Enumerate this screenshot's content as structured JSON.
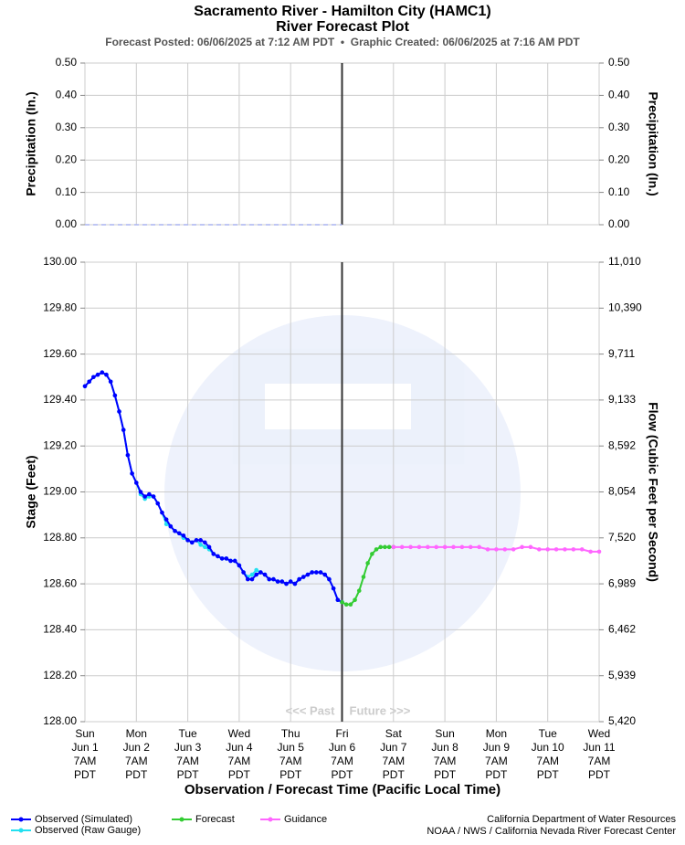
{
  "header": {
    "title": "Sacramento River - Hamilton City (HAMC1)",
    "subtitle": "River Forecast Plot",
    "posted": "Forecast Posted: 06/06/2025 at 7:12 AM PDT  •  Graphic Created: 06/06/2025 at 7:16 AM PDT"
  },
  "chart_data": [
    {
      "type": "line",
      "ylabel": "Precipitation (In.)",
      "y2label": "Precipitation (In.)",
      "ylim": [
        0,
        0.5
      ],
      "yticks": [
        {
          "value": 0,
          "label": "0.00"
        },
        {
          "value": 0.1,
          "label": "0.10"
        },
        {
          "value": 0.2,
          "label": "0.20"
        },
        {
          "value": 0.3,
          "label": "0.30"
        },
        {
          "value": 0.4,
          "label": "0.40"
        },
        {
          "value": 0.5,
          "label": "0.50"
        }
      ],
      "y2lim": [
        0,
        0.5
      ],
      "y2ticks": [
        {
          "value": 0,
          "label": "0.00"
        },
        {
          "value": 0.1,
          "label": "0.10"
        },
        {
          "value": 0.2,
          "label": "0.20"
        },
        {
          "value": 0.3,
          "label": "0.30"
        },
        {
          "value": 0.4,
          "label": "0.40"
        },
        {
          "value": 0.5,
          "label": "0.50"
        }
      ],
      "xlim": [
        "2025-06-01T07:00",
        "2025-06-11T07:00"
      ],
      "xticks": [
        "2025-06-01T07:00",
        "2025-06-02T07:00",
        "2025-06-03T07:00",
        "2025-06-04T07:00",
        "2025-06-05T07:00",
        "2025-06-06T07:00",
        "2025-06-07T07:00",
        "2025-06-08T07:00",
        "2025-06-09T07:00",
        "2025-06-10T07:00",
        "2025-06-11T07:00"
      ],
      "grid": true,
      "now": "2025-06-06T07:00",
      "series": [
        {
          "color": "#aab4f0",
          "dashed": true,
          "dots": false,
          "x": [
            "2025-06-01T07:00",
            "2025-06-02T07:00",
            "2025-06-03T07:00",
            "2025-06-04T07:00",
            "2025-06-05T07:00",
            "2025-06-06T07:00"
          ],
          "values": [
            0,
            0,
            0,
            0,
            0,
            0
          ]
        }
      ]
    },
    {
      "type": "line",
      "ylabel": "Stage (Feet)",
      "y2label": "Flow (Cubic Feet per Second)",
      "xlabel": "Observation / Forecast Time (Pacific Local Time)",
      "ylim": [
        128,
        130
      ],
      "yticks": [
        {
          "value": 128,
          "label": "128.00"
        },
        {
          "value": 128.2,
          "label": "128.20"
        },
        {
          "value": 128.4,
          "label": "128.40"
        },
        {
          "value": 128.6,
          "label": "128.60"
        },
        {
          "value": 128.8,
          "label": "128.80"
        },
        {
          "value": 129,
          "label": "129.00"
        },
        {
          "value": 129.2,
          "label": "129.20"
        },
        {
          "value": 129.4,
          "label": "129.40"
        },
        {
          "value": 129.6,
          "label": "129.60"
        },
        {
          "value": 129.8,
          "label": "129.80"
        },
        {
          "value": 130,
          "label": "130.00"
        }
      ],
      "y2lim": [
        5420,
        11010
      ],
      "y2ticks": [
        {
          "value": 5420,
          "label": "5,420"
        },
        {
          "value": 5939,
          "label": "5,939"
        },
        {
          "value": 6462,
          "label": "6,462"
        },
        {
          "value": 6989,
          "label": "6,989"
        },
        {
          "value": 7520,
          "label": "7,520"
        },
        {
          "value": 8054,
          "label": "8,054"
        },
        {
          "value": 8592,
          "label": "8,592"
        },
        {
          "value": 9133,
          "label": "9,133"
        },
        {
          "value": 9711,
          "label": "9,711"
        },
        {
          "value": 10390,
          "label": "10,390"
        },
        {
          "value": 11010,
          "label": "11,010"
        }
      ],
      "xlim": [
        "2025-06-01T07:00",
        "2025-06-11T07:00"
      ],
      "xticks": [
        {
          "value": "2025-06-01T07:00",
          "label": [
            "Sun",
            "Jun 1",
            "7AM",
            "PDT"
          ]
        },
        {
          "value": "2025-06-02T07:00",
          "label": [
            "Mon",
            "Jun 2",
            "7AM",
            "PDT"
          ]
        },
        {
          "value": "2025-06-03T07:00",
          "label": [
            "Tue",
            "Jun 3",
            "7AM",
            "PDT"
          ]
        },
        {
          "value": "2025-06-04T07:00",
          "label": [
            "Wed",
            "Jun 4",
            "7AM",
            "PDT"
          ]
        },
        {
          "value": "2025-06-05T07:00",
          "label": [
            "Thu",
            "Jun 5",
            "7AM",
            "PDT"
          ]
        },
        {
          "value": "2025-06-06T07:00",
          "label": [
            "Fri",
            "Jun 6",
            "7AM",
            "PDT"
          ]
        },
        {
          "value": "2025-06-07T07:00",
          "label": [
            "Sat",
            "Jun 7",
            "7AM",
            "PDT"
          ]
        },
        {
          "value": "2025-06-08T07:00",
          "label": [
            "Sun",
            "Jun 8",
            "7AM",
            "PDT"
          ]
        },
        {
          "value": "2025-06-09T07:00",
          "label": [
            "Mon",
            "Jun 9",
            "7AM",
            "PDT"
          ]
        },
        {
          "value": "2025-06-10T07:00",
          "label": [
            "Tue",
            "Jun 10",
            "7AM",
            "PDT"
          ]
        },
        {
          "value": "2025-06-11T07:00",
          "label": [
            "Wed",
            "Jun 11",
            "7AM",
            "PDT"
          ]
        }
      ],
      "grid": true,
      "now": "2025-06-06T07:00",
      "past_label": "<<< Past",
      "future_label": "Future >>>",
      "series": [
        {
          "name": "Observed (Raw Gauge)",
          "color": "#22e0f0",
          "dots": true,
          "x": [
            "2025-06-01T07:00",
            "2025-06-01T09:00",
            "2025-06-01T11:00",
            "2025-06-01T13:00",
            "2025-06-01T15:00",
            "2025-06-01T17:00",
            "2025-06-01T19:00",
            "2025-06-01T21:00",
            "2025-06-01T23:00",
            "2025-06-02T01:00",
            "2025-06-02T03:00",
            "2025-06-02T05:00",
            "2025-06-02T07:00",
            "2025-06-02T09:00",
            "2025-06-02T11:00",
            "2025-06-02T13:00",
            "2025-06-02T15:00",
            "2025-06-02T17:00",
            "2025-06-02T19:00",
            "2025-06-02T21:00",
            "2025-06-02T23:00",
            "2025-06-03T01:00",
            "2025-06-03T03:00",
            "2025-06-03T05:00",
            "2025-06-03T07:00",
            "2025-06-03T09:00",
            "2025-06-03T11:00",
            "2025-06-03T13:00",
            "2025-06-03T15:00",
            "2025-06-03T17:00",
            "2025-06-03T19:00",
            "2025-06-03T21:00",
            "2025-06-03T23:00",
            "2025-06-04T01:00",
            "2025-06-04T03:00",
            "2025-06-04T05:00",
            "2025-06-04T07:00",
            "2025-06-04T09:00",
            "2025-06-04T11:00",
            "2025-06-04T13:00",
            "2025-06-04T15:00",
            "2025-06-04T17:00",
            "2025-06-04T19:00",
            "2025-06-04T21:00",
            "2025-06-04T23:00",
            "2025-06-05T01:00",
            "2025-06-05T03:00",
            "2025-06-05T05:00",
            "2025-06-05T07:00",
            "2025-06-05T09:00",
            "2025-06-05T11:00",
            "2025-06-05T13:00",
            "2025-06-05T15:00",
            "2025-06-05T17:00",
            "2025-06-05T19:00",
            "2025-06-05T21:00",
            "2025-06-05T23:00",
            "2025-06-06T01:00",
            "2025-06-06T03:00",
            "2025-06-06T05:00",
            "2025-06-06T07:00"
          ],
          "values": [
            129.46,
            129.48,
            129.5,
            129.51,
            129.52,
            129.51,
            129.48,
            129.42,
            129.35,
            129.27,
            129.16,
            129.08,
            129.04,
            128.99,
            128.97,
            128.98,
            128.98,
            128.95,
            128.91,
            128.86,
            128.85,
            128.83,
            128.82,
            128.8,
            128.79,
            128.78,
            128.79,
            128.77,
            128.76,
            128.75,
            128.73,
            128.72,
            128.71,
            128.71,
            128.7,
            128.7,
            128.68,
            128.65,
            128.63,
            128.64,
            128.66,
            128.65,
            128.64,
            128.62,
            128.62,
            128.61,
            128.61,
            128.6,
            128.61,
            128.6,
            128.62,
            128.63,
            128.64,
            128.65,
            128.65,
            128.65,
            128.64,
            128.62,
            128.58,
            128.53,
            128.52
          ]
        },
        {
          "name": "Observed (Simulated)",
          "color": "#0000ff",
          "dots": true,
          "x": [
            "2025-06-01T07:00",
            "2025-06-01T09:00",
            "2025-06-01T11:00",
            "2025-06-01T13:00",
            "2025-06-01T15:00",
            "2025-06-01T17:00",
            "2025-06-01T19:00",
            "2025-06-01T21:00",
            "2025-06-01T23:00",
            "2025-06-02T01:00",
            "2025-06-02T03:00",
            "2025-06-02T05:00",
            "2025-06-02T07:00",
            "2025-06-02T09:00",
            "2025-06-02T11:00",
            "2025-06-02T13:00",
            "2025-06-02T15:00",
            "2025-06-02T17:00",
            "2025-06-02T19:00",
            "2025-06-02T21:00",
            "2025-06-02T23:00",
            "2025-06-03T01:00",
            "2025-06-03T03:00",
            "2025-06-03T05:00",
            "2025-06-03T07:00",
            "2025-06-03T09:00",
            "2025-06-03T11:00",
            "2025-06-03T13:00",
            "2025-06-03T15:00",
            "2025-06-03T17:00",
            "2025-06-03T19:00",
            "2025-06-03T21:00",
            "2025-06-03T23:00",
            "2025-06-04T01:00",
            "2025-06-04T03:00",
            "2025-06-04T05:00",
            "2025-06-04T07:00",
            "2025-06-04T09:00",
            "2025-06-04T11:00",
            "2025-06-04T13:00",
            "2025-06-04T15:00",
            "2025-06-04T17:00",
            "2025-06-04T19:00",
            "2025-06-04T21:00",
            "2025-06-04T23:00",
            "2025-06-05T01:00",
            "2025-06-05T03:00",
            "2025-06-05T05:00",
            "2025-06-05T07:00",
            "2025-06-05T09:00",
            "2025-06-05T11:00",
            "2025-06-05T13:00",
            "2025-06-05T15:00",
            "2025-06-05T17:00",
            "2025-06-05T19:00",
            "2025-06-05T21:00",
            "2025-06-05T23:00",
            "2025-06-06T01:00",
            "2025-06-06T03:00",
            "2025-06-06T05:00",
            "2025-06-06T07:00"
          ],
          "values": [
            129.46,
            129.48,
            129.5,
            129.51,
            129.52,
            129.51,
            129.48,
            129.42,
            129.35,
            129.27,
            129.16,
            129.08,
            129.04,
            129.0,
            128.98,
            128.99,
            128.98,
            128.95,
            128.91,
            128.88,
            128.85,
            128.83,
            128.82,
            128.81,
            128.79,
            128.78,
            128.79,
            128.79,
            128.78,
            128.76,
            128.73,
            128.72,
            128.71,
            128.71,
            128.7,
            128.7,
            128.68,
            128.65,
            128.62,
            128.62,
            128.64,
            128.65,
            128.64,
            128.62,
            128.62,
            128.61,
            128.61,
            128.6,
            128.61,
            128.6,
            128.62,
            128.63,
            128.64,
            128.65,
            128.65,
            128.65,
            128.64,
            128.62,
            128.58,
            128.53,
            128.52
          ]
        },
        {
          "name": "Forecast",
          "color": "#33cc33",
          "dots": true,
          "x": [
            "2025-06-06T07:00",
            "2025-06-06T09:00",
            "2025-06-06T11:00",
            "2025-06-06T13:00",
            "2025-06-06T15:00",
            "2025-06-06T17:00",
            "2025-06-06T19:00",
            "2025-06-06T21:00",
            "2025-06-06T23:00",
            "2025-06-07T01:00",
            "2025-06-07T03:00",
            "2025-06-07T05:00",
            "2025-06-07T07:00"
          ],
          "values": [
            128.52,
            128.51,
            128.51,
            128.53,
            128.57,
            128.63,
            128.69,
            128.73,
            128.75,
            128.76,
            128.76,
            128.76,
            128.76
          ]
        },
        {
          "name": "Guidance",
          "color": "#ff66ff",
          "dots": true,
          "x": [
            "2025-06-07T07:00",
            "2025-06-07T11:00",
            "2025-06-07T15:00",
            "2025-06-07T19:00",
            "2025-06-07T23:00",
            "2025-06-08T03:00",
            "2025-06-08T07:00",
            "2025-06-08T11:00",
            "2025-06-08T15:00",
            "2025-06-08T19:00",
            "2025-06-08T23:00",
            "2025-06-09T03:00",
            "2025-06-09T07:00",
            "2025-06-09T11:00",
            "2025-06-09T15:00",
            "2025-06-09T19:00",
            "2025-06-09T23:00",
            "2025-06-10T03:00",
            "2025-06-10T07:00",
            "2025-06-10T11:00",
            "2025-06-10T15:00",
            "2025-06-10T19:00",
            "2025-06-10T23:00",
            "2025-06-11T03:00",
            "2025-06-11T07:00"
          ],
          "values": [
            128.76,
            128.76,
            128.76,
            128.76,
            128.76,
            128.76,
            128.76,
            128.76,
            128.76,
            128.76,
            128.76,
            128.75,
            128.75,
            128.75,
            128.75,
            128.76,
            128.76,
            128.75,
            128.75,
            128.75,
            128.75,
            128.75,
            128.75,
            128.74,
            128.74
          ]
        }
      ]
    }
  ],
  "footer": [
    "California Department of Water Resources",
    "NOAA / NWS / California Nevada River Forecast Center"
  ]
}
